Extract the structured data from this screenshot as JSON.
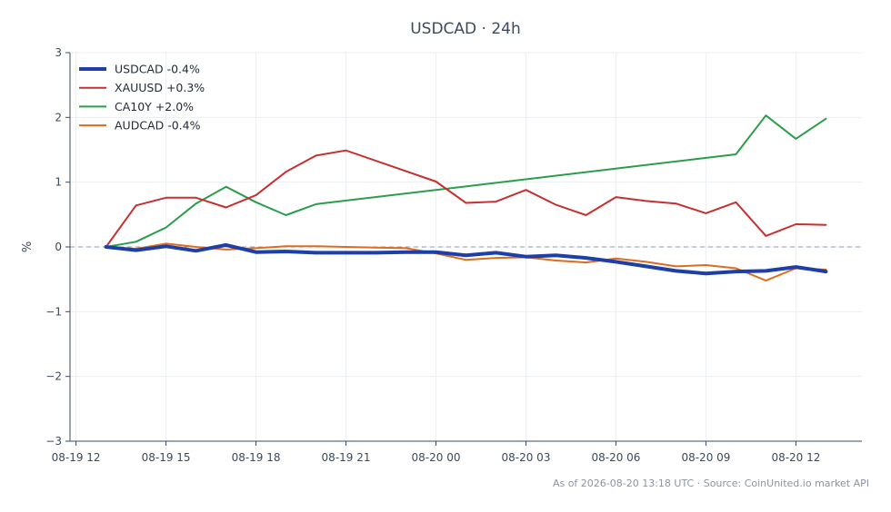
{
  "chart_data": {
    "type": "line",
    "title": "USDCAD · 24h",
    "ylabel": "%",
    "xlabel": "",
    "ylim": [
      -3,
      3
    ],
    "yticks": [
      3,
      2,
      1,
      0,
      -1,
      -2,
      -3
    ],
    "ytick_labels": [
      "3",
      "2",
      "1",
      "0",
      "−1",
      "−2",
      "−3"
    ],
    "xlim": [
      -0.2,
      26.2
    ],
    "xticks": [
      0,
      3,
      6,
      9,
      12,
      15,
      18,
      21,
      24
    ],
    "xtick_labels": [
      "08-19 12",
      "08-19 15",
      "08-19 18",
      "08-19 21",
      "08-20 00",
      "08-20 03",
      "08-20 06",
      "08-20 09",
      "08-20 12"
    ],
    "grid": true,
    "zero_line": true,
    "legend_position": "top-left",
    "series": [
      {
        "name": "USDCAD -0.4%",
        "color": "#1f3fa8",
        "x": [
          1,
          2,
          3,
          4,
          5,
          6,
          7,
          8,
          9,
          10,
          11,
          12,
          13,
          14,
          15,
          16,
          17,
          18,
          19,
          20,
          21,
          22,
          23,
          24,
          25
        ],
        "values": [
          0.0,
          -0.05,
          0.01,
          -0.06,
          0.03,
          -0.08,
          -0.07,
          -0.09,
          -0.09,
          -0.09,
          -0.08,
          -0.08,
          -0.13,
          -0.09,
          -0.15,
          -0.13,
          -0.17,
          -0.23,
          -0.3,
          -0.37,
          -0.41,
          -0.38,
          -0.37,
          -0.31,
          -0.38
        ]
      },
      {
        "name": "XAUUSD +0.3%",
        "color": "#c53030",
        "x": [
          1,
          2,
          3,
          4,
          5,
          6,
          7,
          8,
          9,
          12,
          13,
          14,
          15,
          16,
          17,
          18,
          19,
          20,
          21,
          22,
          23,
          24,
          25
        ],
        "values": [
          0.0,
          0.64,
          0.76,
          0.76,
          0.61,
          0.8,
          1.16,
          1.41,
          1.49,
          1.01,
          0.68,
          0.7,
          0.88,
          0.65,
          0.49,
          0.77,
          0.71,
          0.67,
          0.52,
          0.69,
          0.17,
          0.35,
          0.34
        ]
      },
      {
        "name": "CA10Y +2.0%",
        "color": "#2a9d4b",
        "x": [
          1,
          2,
          3,
          4,
          5,
          6,
          7,
          8,
          22,
          23,
          24,
          25
        ],
        "values": [
          0.0,
          0.08,
          0.3,
          0.67,
          0.93,
          0.69,
          0.49,
          0.66,
          1.43,
          2.03,
          1.67,
          1.98
        ]
      },
      {
        "name": "AUDCAD -0.4%",
        "color": "#dd6b20",
        "x": [
          1,
          2,
          3,
          4,
          5,
          6,
          7,
          8,
          9,
          10,
          11,
          12,
          13,
          14,
          15,
          16,
          17,
          18,
          19,
          20,
          21,
          22,
          23,
          24,
          25
        ],
        "values": [
          0.0,
          -0.03,
          0.05,
          0.0,
          -0.04,
          -0.02,
          0.01,
          0.01,
          0.0,
          -0.01,
          -0.02,
          -0.1,
          -0.2,
          -0.17,
          -0.16,
          -0.21,
          -0.24,
          -0.18,
          -0.23,
          -0.3,
          -0.28,
          -0.33,
          -0.52,
          -0.33,
          -0.35
        ]
      }
    ]
  },
  "footer": {
    "source_text": "As of 2026-08-20 13:18 UTC · Source: CoinUnited.io market API"
  }
}
